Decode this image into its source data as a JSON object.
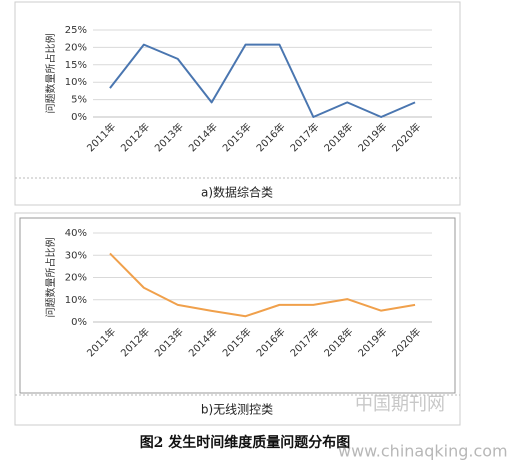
{
  "figure_title": "图2 发生时间维度质量问题分布图",
  "watermark": [
    "中国期刊网",
    "www.chinaqking.com"
  ],
  "chart_data": [
    {
      "type": "line",
      "caption": "a)数据综合类",
      "ylabel": "问题数量所占比例",
      "categories": [
        "2011年",
        "2012年",
        "2013年",
        "2014年",
        "2015年",
        "2016年",
        "2017年",
        "2018年",
        "2019年",
        "2020年"
      ],
      "series": [
        {
          "name": "数据综合类",
          "color": "#4a76b0",
          "values": [
            8.3,
            20.8,
            16.7,
            4.2,
            20.8,
            20.8,
            0,
            4.2,
            0,
            4.2
          ]
        }
      ],
      "ylim": [
        0,
        25
      ],
      "yticks": [
        {
          "value": 0,
          "label": "0%"
        },
        {
          "value": 5,
          "label": "5%"
        },
        {
          "value": 10,
          "label": "10%"
        },
        {
          "value": 15,
          "label": "15%"
        },
        {
          "value": 20,
          "label": "20%"
        },
        {
          "value": 25,
          "label": "25%"
        }
      ],
      "grid": true
    },
    {
      "type": "line",
      "caption": "b)无线测控类",
      "ylabel": "问题数量所占比例",
      "categories": [
        "2011年",
        "2012年",
        "2013年",
        "2014年",
        "2015年",
        "2016年",
        "2017年",
        "2018年",
        "2019年",
        "2020年"
      ],
      "series": [
        {
          "name": "无线测控类",
          "color": "#f0a04b",
          "values": [
            30.8,
            15.4,
            7.7,
            5,
            2.6,
            7.7,
            7.7,
            10.3,
            5.1,
            7.7
          ]
        }
      ],
      "ylim": [
        0,
        40
      ],
      "yticks": [
        {
          "value": 0,
          "label": "0%"
        },
        {
          "value": 10,
          "label": "10%"
        },
        {
          "value": 20,
          "label": "20%"
        },
        {
          "value": 30,
          "label": "30%"
        },
        {
          "value": 40,
          "label": "40%"
        }
      ],
      "grid": true
    }
  ]
}
